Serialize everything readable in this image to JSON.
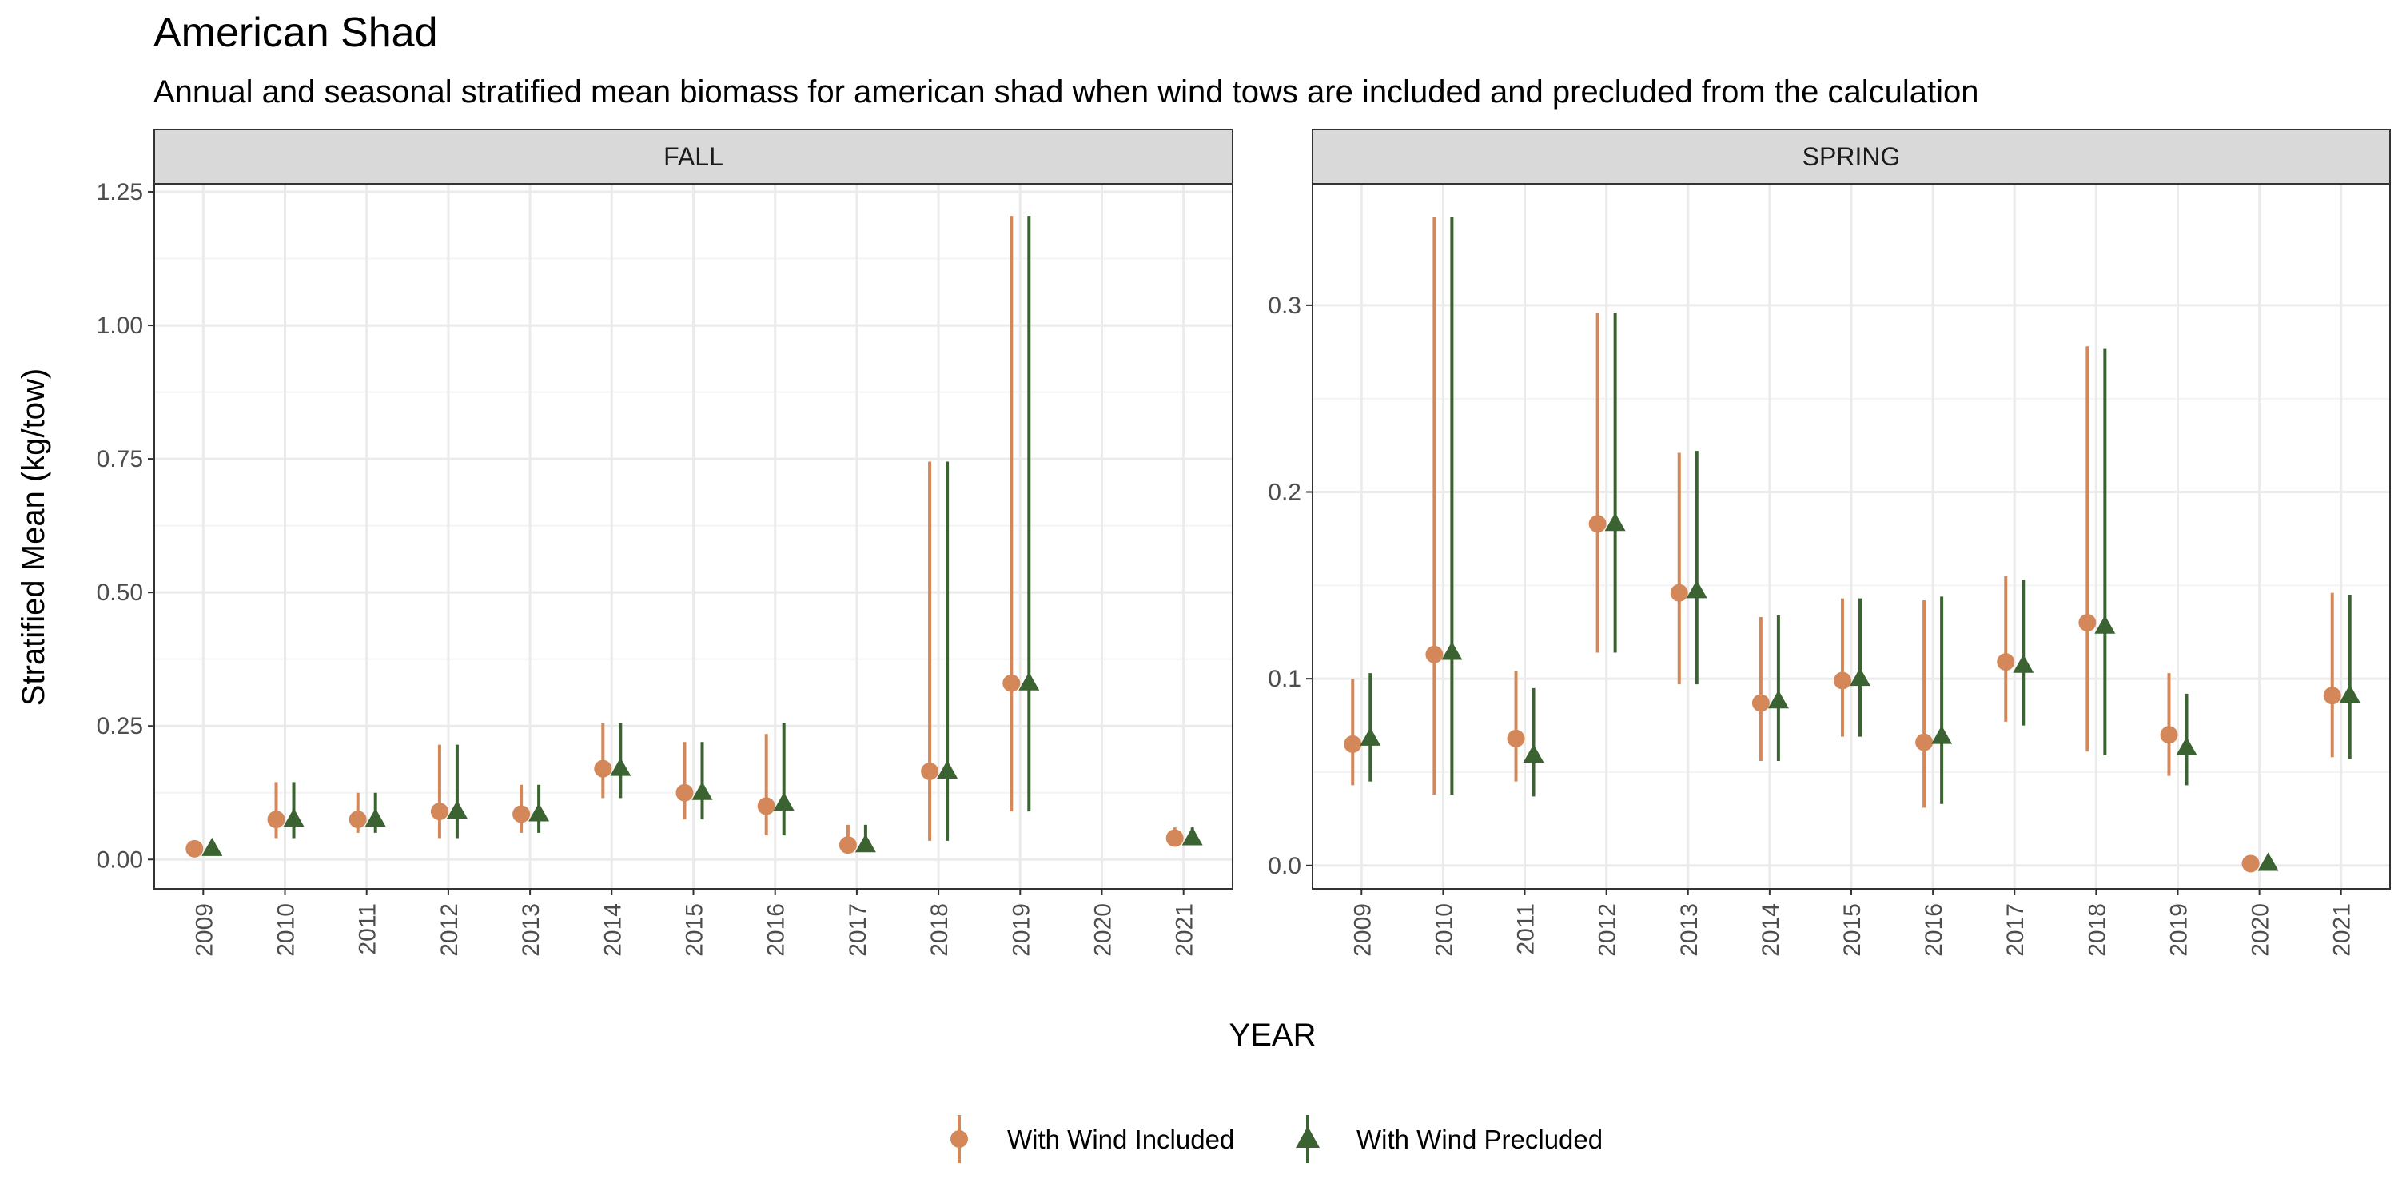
{
  "title": "American Shad",
  "subtitle": "Annual and seasonal stratified mean biomass for american shad when wind tows are included and precluded from the calculation",
  "colors": {
    "included": "#D4885A",
    "precluded": "#3B6332",
    "grid_major": "#EBEBEB",
    "strip_fill": "#D9D9D9"
  },
  "chart_data": {
    "type": "scatter",
    "subtype": "point-range with error bars, faceted",
    "xlabel": "YEAR",
    "ylabel": "Stratified Mean (kg/tow)",
    "legend": {
      "position": "bottom",
      "entries": [
        {
          "name": "With Wind Included",
          "marker": "circle",
          "color": "#D4885A"
        },
        {
          "name": "With Wind Precluded",
          "marker": "triangle",
          "color": "#3B6332"
        }
      ]
    },
    "categories": [
      "2009",
      "2010",
      "2011",
      "2012",
      "2013",
      "2014",
      "2015",
      "2016",
      "2017",
      "2018",
      "2019",
      "2020",
      "2021"
    ],
    "facets": [
      {
        "label": "FALL",
        "ylim": [
          -0.055,
          1.265
        ],
        "yticks": [
          0,
          0.25,
          0.5,
          0.75,
          1.0,
          1.25
        ],
        "ytick_labels": [
          "0.00",
          "0.25",
          "0.50",
          "0.75",
          "1.00",
          "1.25"
        ],
        "series": [
          {
            "name": "With Wind Included",
            "values": [
              0.02,
              0.075,
              0.075,
              0.09,
              0.085,
              0.17,
              0.125,
              0.1,
              0.027,
              0.165,
              0.33,
              null,
              0.04
            ],
            "lower": [
              0.02,
              0.04,
              0.05,
              0.04,
              0.05,
              0.115,
              0.075,
              0.045,
              0.015,
              0.035,
              0.09,
              null,
              0.03
            ],
            "upper": [
              0.02,
              0.145,
              0.125,
              0.215,
              0.14,
              0.255,
              0.22,
              0.235,
              0.065,
              0.745,
              1.205,
              null,
              0.06
            ]
          },
          {
            "name": "With Wind Precluded",
            "values": [
              0.02,
              0.075,
              0.075,
              0.09,
              0.085,
              0.17,
              0.125,
              0.105,
              0.027,
              0.165,
              0.33,
              null,
              0.04
            ],
            "lower": [
              0.02,
              0.04,
              0.05,
              0.04,
              0.05,
              0.115,
              0.075,
              0.045,
              0.015,
              0.035,
              0.09,
              null,
              0.03
            ],
            "upper": [
              0.02,
              0.145,
              0.125,
              0.215,
              0.14,
              0.255,
              0.22,
              0.255,
              0.065,
              0.745,
              1.205,
              null,
              0.06
            ]
          }
        ]
      },
      {
        "label": "SPRING",
        "ylim": [
          -0.0125,
          0.365
        ],
        "yticks": [
          0,
          0.1,
          0.2,
          0.3
        ],
        "ytick_labels": [
          "0.0",
          "0.1",
          "0.2",
          "0.3"
        ],
        "series": [
          {
            "name": "With Wind Included",
            "values": [
              0.065,
              0.113,
              0.068,
              0.183,
              0.146,
              0.087,
              0.099,
              0.066,
              0.109,
              0.13,
              0.07,
              0.001,
              0.091
            ],
            "lower": [
              0.043,
              0.038,
              0.045,
              0.114,
              0.097,
              0.056,
              0.069,
              0.031,
              0.077,
              0.061,
              0.048,
              0.0,
              0.058
            ],
            "upper": [
              0.1,
              0.347,
              0.104,
              0.296,
              0.221,
              0.133,
              0.143,
              0.142,
              0.155,
              0.278,
              0.103,
              0.003,
              0.146
            ]
          },
          {
            "name": "With Wind Precluded",
            "values": [
              0.068,
              0.114,
              0.059,
              0.183,
              0.147,
              0.088,
              0.1,
              0.069,
              0.107,
              0.128,
              0.063,
              0.001,
              0.091
            ],
            "lower": [
              0.045,
              0.038,
              0.037,
              0.114,
              0.097,
              0.056,
              0.069,
              0.033,
              0.075,
              0.059,
              0.043,
              0.0,
              0.057
            ],
            "upper": [
              0.103,
              0.347,
              0.095,
              0.296,
              0.222,
              0.134,
              0.143,
              0.144,
              0.153,
              0.277,
              0.092,
              0.003,
              0.145
            ]
          }
        ]
      }
    ]
  }
}
